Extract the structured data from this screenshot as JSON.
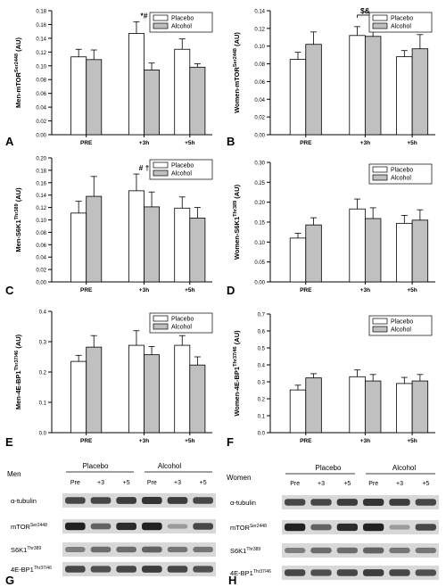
{
  "chart_data": [
    {
      "type": "bar",
      "panel": "A",
      "ylabel_main": "Men-mTOR",
      "ylabel_sup": "Ser2448",
      "ylabel_unit": " (AU)",
      "categories": [
        "PRE",
        "+3h",
        "+5h"
      ],
      "ylim": [
        0,
        0.18
      ],
      "yticks": [
        "0.00",
        "0.02",
        "0.04",
        "0.06",
        "0.08",
        "0.10",
        "0.12",
        "0.14",
        "0.16",
        "0.18"
      ],
      "series": [
        {
          "name": "Placebo",
          "values": [
            0.113,
            0.147,
            0.124
          ],
          "errors": [
            0.011,
            0.017,
            0.015
          ]
        },
        {
          "name": "Alcohol",
          "values": [
            0.109,
            0.094,
            0.098
          ],
          "errors": [
            0.014,
            0.01,
            0.005
          ]
        }
      ],
      "annotations": [
        {
          "text": "*#",
          "category": 1
        }
      ]
    },
    {
      "type": "bar",
      "panel": "B",
      "ylabel_main": "Women-mTOR",
      "ylabel_sup": "Ser2448",
      "ylabel_unit": " (AU)",
      "categories": [
        "PRE",
        "+3h",
        "+5h"
      ],
      "ylim": [
        0,
        0.14
      ],
      "yticks": [
        "0.00",
        "0.02",
        "0.04",
        "0.06",
        "0.08",
        "0.10",
        "0.12",
        "0.14"
      ],
      "series": [
        {
          "name": "Placebo",
          "values": [
            0.085,
            0.112,
            0.088
          ],
          "errors": [
            0.008,
            0.01,
            0.007
          ]
        },
        {
          "name": "Alcohol",
          "values": [
            0.102,
            0.111,
            0.097
          ],
          "errors": [
            0.014,
            0.021,
            0.016
          ]
        }
      ],
      "annotations": [
        {
          "text": "$&",
          "category": 1,
          "bracket": true
        }
      ]
    },
    {
      "type": "bar",
      "panel": "C",
      "ylabel_main": "Men-S6K1",
      "ylabel_sup": "Thr389",
      "ylabel_unit": " (AU)",
      "categories": [
        "PRE",
        "+3h",
        "+5h"
      ],
      "ylim": [
        0,
        0.2
      ],
      "yticks": [
        "0.00",
        "0.02",
        "0.04",
        "0.06",
        "0.08",
        "0.10",
        "0.12",
        "0.14",
        "0.16",
        "0.18",
        "0.20"
      ],
      "series": [
        {
          "name": "Placebo",
          "values": [
            0.111,
            0.147,
            0.119
          ],
          "errors": [
            0.019,
            0.027,
            0.018
          ]
        },
        {
          "name": "Alcohol",
          "values": [
            0.138,
            0.121,
            0.103
          ],
          "errors": [
            0.032,
            0.024,
            0.017
          ]
        }
      ],
      "annotations": [
        {
          "text": "# †",
          "category": 1
        }
      ]
    },
    {
      "type": "bar",
      "panel": "D",
      "ylabel_main": "Women-S6K1",
      "ylabel_sup": "Thr389",
      "ylabel_unit": " (AU)",
      "categories": [
        "PRE",
        "+3h",
        "+5h"
      ],
      "ylim": [
        0,
        0.3
      ],
      "yticks": [
        "0.00",
        "0.05",
        "0.10",
        "0.15",
        "0.20",
        "0.25",
        "0.30"
      ],
      "series": [
        {
          "name": "Placebo",
          "values": [
            0.11,
            0.183,
            0.147
          ],
          "errors": [
            0.012,
            0.025,
            0.02
          ]
        },
        {
          "name": "Alcohol",
          "values": [
            0.143,
            0.159,
            0.155
          ],
          "errors": [
            0.018,
            0.027,
            0.026
          ]
        }
      ],
      "annotations": []
    },
    {
      "type": "bar",
      "panel": "E",
      "ylabel_main": "Men-4E-BP1",
      "ylabel_sup": "Thr37/46",
      "ylabel_unit": " (AU)",
      "categories": [
        "PRE",
        "+3h",
        "+5h"
      ],
      "ylim": [
        0,
        0.4
      ],
      "yticks": [
        "0.0",
        "0.1",
        "0.2",
        "0.3",
        "0.4"
      ],
      "series": [
        {
          "name": "Placebo",
          "values": [
            0.235,
            0.288,
            0.288
          ],
          "errors": [
            0.02,
            0.048,
            0.032
          ]
        },
        {
          "name": "Alcohol",
          "values": [
            0.282,
            0.257,
            0.223
          ],
          "errors": [
            0.038,
            0.027,
            0.027
          ]
        }
      ],
      "annotations": []
    },
    {
      "type": "bar",
      "panel": "F",
      "ylabel_main": "Women-4E-BP1",
      "ylabel_sup": "Thr37/46",
      "ylabel_unit": " (AU)",
      "categories": [
        "PRE",
        "+3h",
        "+5h"
      ],
      "ylim": [
        0,
        0.7
      ],
      "yticks": [
        "0.0",
        "0.1",
        "0.2",
        "0.3",
        "0.4",
        "0.5",
        "0.6",
        "0.7"
      ],
      "series": [
        {
          "name": "Placebo",
          "values": [
            0.252,
            0.33,
            0.29
          ],
          "errors": [
            0.028,
            0.04,
            0.036
          ]
        },
        {
          "name": "Alcohol",
          "values": [
            0.323,
            0.305,
            0.305
          ],
          "errors": [
            0.025,
            0.038,
            0.038
          ]
        }
      ],
      "annotations": []
    }
  ],
  "blots": [
    {
      "panel": "G",
      "group": "Men",
      "conditions": [
        "Placebo",
        "Alcohol"
      ],
      "lanes": [
        "Pre",
        "+3",
        "+5",
        "Pre",
        "+3",
        "+5"
      ],
      "rows": [
        {
          "main": "α-tubulin",
          "sup": ""
        },
        {
          "main": "mTOR",
          "sup": "Ser2448"
        },
        {
          "main": "S6K1",
          "sup": "Thr389"
        },
        {
          "main": "4E-BP1",
          "sup": "Thr37/46"
        }
      ]
    },
    {
      "panel": "H",
      "group": "Women",
      "conditions": [
        "Placebo",
        "Alcohol"
      ],
      "lanes": [
        "Pre",
        "+3",
        "+5",
        "Pre",
        "+3",
        "+5"
      ],
      "rows": [
        {
          "main": "α-tubulin",
          "sup": ""
        },
        {
          "main": "mTOR",
          "sup": "Ser2448"
        },
        {
          "main": "S6K1",
          "sup": "Thr389"
        },
        {
          "main": "4E-BP1",
          "sup": "Thr37/46"
        }
      ]
    }
  ],
  "colors": {
    "placebo": "#ffffff",
    "alcohol": "#c0c0c0",
    "axis": "#000000"
  }
}
